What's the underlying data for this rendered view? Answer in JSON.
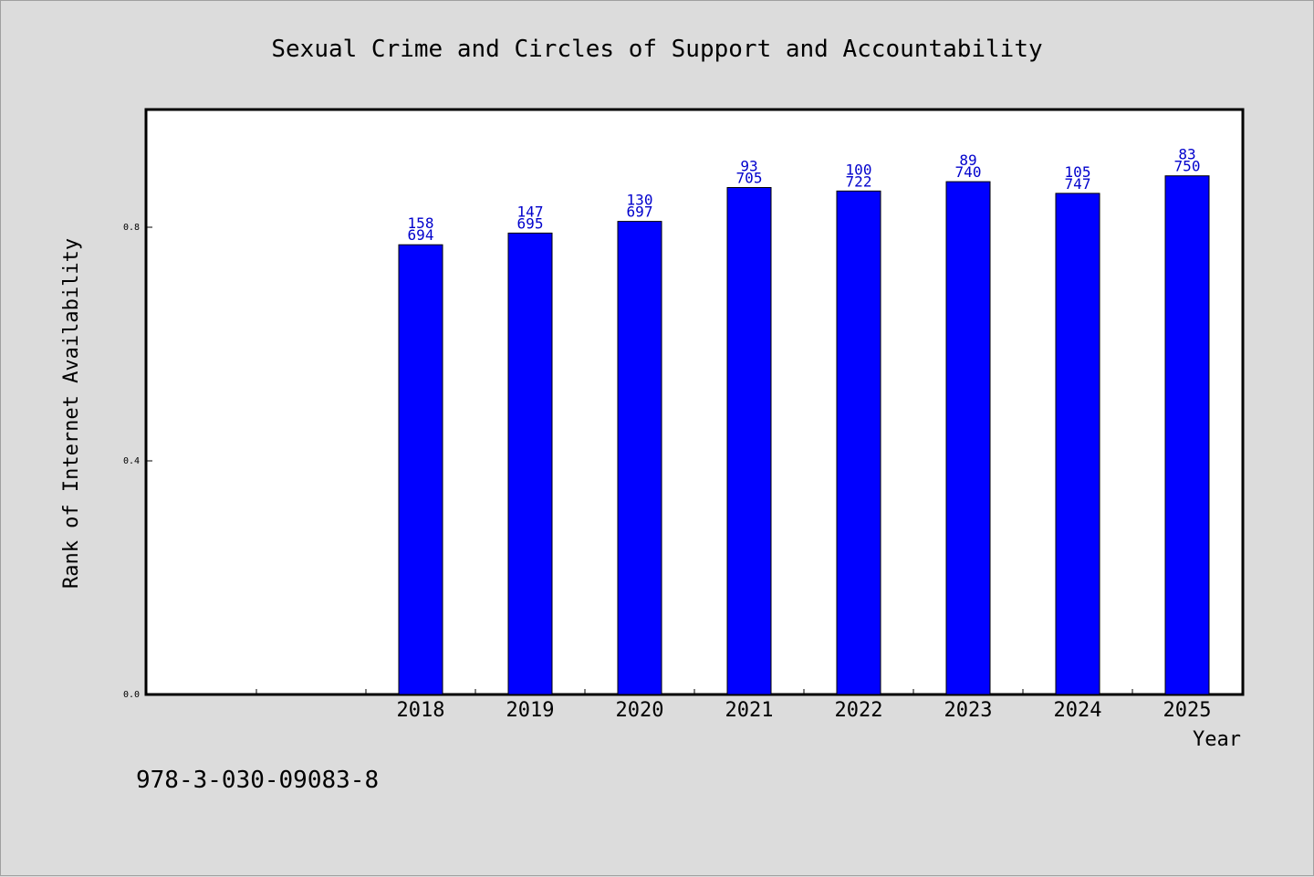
{
  "chart_data": {
    "type": "bar",
    "title": "Sexual Crime and Circles of Support and Accountability",
    "xlabel": "Year",
    "ylabel": "Rank of Internet Availability",
    "categories": [
      "",
      "",
      "2018",
      "2019",
      "2020",
      "2021",
      "2022",
      "2023",
      "2024",
      "2025"
    ],
    "series": [
      {
        "values": [
          null,
          null,
          0.77,
          0.79,
          0.81,
          0.868,
          0.862,
          0.878,
          0.858,
          0.888
        ],
        "label_top": [
          "",
          "",
          "158",
          "147",
          "130",
          "93",
          "100",
          "89",
          "105",
          "83"
        ],
        "label_bottom": [
          "",
          "",
          "694",
          "695",
          "697",
          "705",
          "722",
          "740",
          "747",
          "750"
        ]
      }
    ],
    "yticks": [
      "0.0",
      "0.4",
      "0.8"
    ],
    "ytick_values": [
      0.0,
      0.4,
      0.8
    ],
    "ylim": [
      0,
      1.0
    ],
    "bar_color": "#0000ff",
    "label_color": "#0000cc",
    "grid": false
  },
  "footer": {
    "isbn": "978-3-030-09083-8"
  }
}
